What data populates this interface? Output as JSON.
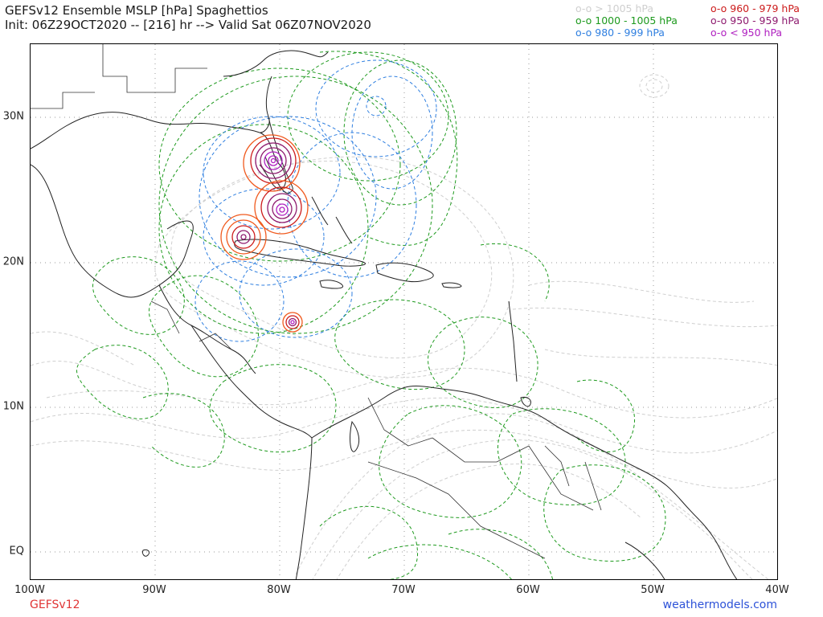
{
  "header": {
    "title_line1": "GEFSv12 Ensemble MSLP [hPa] Spaghettios",
    "title_line2": "Init: 06Z29OCT2020 -- [216] hr --> Valid Sat 06Z07NOV2020"
  },
  "legend": {
    "items": [
      {
        "label": "o-o > 1005 hPa",
        "color": "#cfcfcf"
      },
      {
        "label": "o-o 1000 - 1005 hPa",
        "color": "#1e9a1e"
      },
      {
        "label": "o-o 980 - 999 hPa",
        "color": "#2f7fe0"
      },
      {
        "label": "o-o 960 - 979 hPa",
        "color": "#cc1b1b"
      },
      {
        "label": "o-o 950 - 959 hPa",
        "color": "#8e1a6e"
      },
      {
        "label": "o-o < 950 hPa",
        "color": "#b020c0"
      }
    ]
  },
  "axes": {
    "x_ticks": [
      "100W",
      "90W",
      "80W",
      "70W",
      "60W",
      "50W",
      "40W"
    ],
    "y_ticks": [
      "30N",
      "20N",
      "10N",
      "EQ"
    ]
  },
  "footer": {
    "model": "GEFSv12",
    "site": "weathermodels.com"
  },
  "colors": {
    "gt1005": "#cfcfcf",
    "c1000_1005": "#1e9a1e",
    "c980_999": "#2f7fe0",
    "c960_979": "#cc1b1b",
    "c950_959": "#8e1a6e",
    "lt950": "#b020c0",
    "orange_ring": "#f05a1e"
  }
}
